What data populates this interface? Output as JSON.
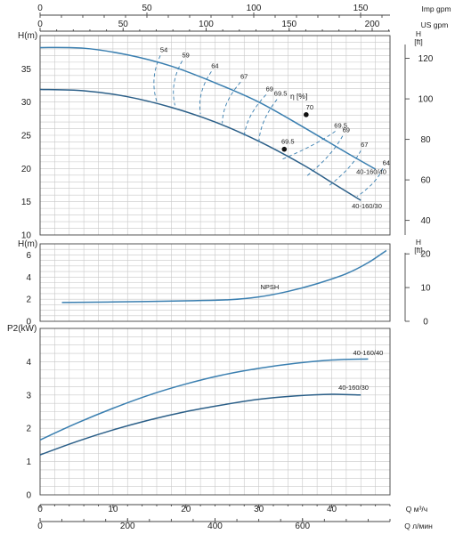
{
  "colors": {
    "curve": "#3a7fb0",
    "curve_dark": "#2b5f88",
    "grid": "#c8c8c8",
    "text": "#222222"
  },
  "top_axis": {
    "imp_gpm": {
      "label": "Imp gpm",
      "ticks": [
        "0",
        "50",
        "100",
        "150"
      ]
    },
    "us_gpm": {
      "label": "US gpm",
      "ticks": [
        "0",
        "50",
        "100",
        "150",
        "200"
      ]
    }
  },
  "bottom_axis": {
    "m3h": {
      "label": "Q  м³/ч",
      "ticks": [
        "0",
        "10",
        "20",
        "30",
        "40"
      ]
    },
    "lmin": {
      "label": "Q  л/мин",
      "ticks": [
        "0",
        "200",
        "400",
        "600"
      ]
    }
  },
  "chart_data": [
    {
      "type": "line",
      "title": "",
      "ylabel": "H(m)",
      "ylabel_right": "H [ft]",
      "xlabel": "Q (m³/h)",
      "xlim": [
        0,
        48
      ],
      "ylim": [
        10,
        40
      ],
      "yticks": [
        "10",
        "15",
        "20",
        "25",
        "30",
        "35"
      ],
      "yticks_right": [
        "40",
        "60",
        "80",
        "100",
        "120"
      ],
      "series": [
        {
          "name": "40-160/40",
          "x": [
            0,
            6,
            12,
            18,
            24,
            30,
            36,
            42,
            46
          ],
          "y": [
            38.2,
            38.1,
            37.1,
            35.4,
            32.9,
            30.0,
            26.3,
            22.4,
            19.9
          ]
        },
        {
          "name": "40-160/30",
          "x": [
            0,
            6,
            12,
            18,
            24,
            30,
            36,
            40,
            44
          ],
          "y": [
            31.9,
            31.7,
            30.8,
            29.2,
            27.0,
            24.1,
            20.6,
            17.9,
            15.2
          ]
        }
      ],
      "efficiency_label": "η [%]",
      "efficiency_lines": [
        {
          "label": "54",
          "top": [
            16.5,
            37.0
          ],
          "bottom": [
            16.0,
            30.1
          ]
        },
        {
          "label": "59",
          "top": [
            19.5,
            36.2
          ],
          "bottom": [
            18.5,
            29.5
          ]
        },
        {
          "label": "64",
          "top": [
            23.5,
            34.6
          ],
          "bottom": [
            22.0,
            28.2
          ]
        },
        {
          "label": "67",
          "top": [
            27.5,
            33.0
          ],
          "bottom": [
            25.0,
            26.8
          ]
        },
        {
          "label": "69",
          "top": [
            31.0,
            31.1
          ],
          "bottom": [
            28.0,
            24.8
          ]
        },
        {
          "label": "69.5",
          "top": [
            32.5,
            30.4
          ],
          "bottom": [
            30.0,
            23.5
          ]
        },
        {
          "label": "69.5",
          "bottom_side": true,
          "top": [
            40.5,
            25.6
          ],
          "bottom": [
            33.0,
            21.3
          ]
        },
        {
          "label": "69",
          "top": [
            41.5,
            24.9
          ],
          "bottom": [
            36.5,
            18.8
          ]
        },
        {
          "label": "67",
          "top": [
            44.0,
            22.7
          ],
          "bottom": [
            39.5,
            17.3
          ]
        },
        {
          "label": "64",
          "top": [
            47.0,
            20.0
          ],
          "bottom": [
            43.5,
            15.8
          ]
        }
      ],
      "points": [
        {
          "label": "70",
          "x": 36.5,
          "y": 28.1
        },
        {
          "label": "69.5",
          "x": 33.5,
          "y": 22.9
        }
      ],
      "series_labels": [
        "40-160/40",
        "40-160/30"
      ]
    },
    {
      "type": "line",
      "title": "",
      "ylabel": "H(m)",
      "ylabel_right": "H [ft]",
      "xlim": [
        0,
        48
      ],
      "ylim": [
        0,
        7
      ],
      "yticks": [
        "0",
        "2",
        "4",
        "6"
      ],
      "yticks_right": [
        "0",
        "10",
        "20"
      ],
      "series": [
        {
          "name": "NPSH",
          "x": [
            3,
            10,
            20,
            26,
            30,
            34,
            38,
            42,
            45,
            47.5
          ],
          "y": [
            1.7,
            1.75,
            1.85,
            1.95,
            2.2,
            2.7,
            3.4,
            4.3,
            5.3,
            6.4
          ]
        }
      ]
    },
    {
      "type": "line",
      "title": "",
      "ylabel": "P2(kW)",
      "xlim": [
        0,
        48
      ],
      "ylim": [
        0,
        5
      ],
      "yticks": [
        "0",
        "1",
        "2",
        "3",
        "4"
      ],
      "series": [
        {
          "name": "40-160/40",
          "x": [
            0,
            5,
            10,
            15,
            20,
            25,
            30,
            35,
            40,
            45
          ],
          "y": [
            1.65,
            2.15,
            2.6,
            3.0,
            3.33,
            3.6,
            3.8,
            3.95,
            4.05,
            4.08
          ]
        },
        {
          "name": "40-160/30",
          "x": [
            0,
            5,
            10,
            15,
            20,
            25,
            30,
            35,
            40,
            44
          ],
          "y": [
            1.2,
            1.6,
            1.95,
            2.25,
            2.5,
            2.7,
            2.87,
            2.97,
            3.02,
            3.0
          ]
        }
      ]
    }
  ]
}
